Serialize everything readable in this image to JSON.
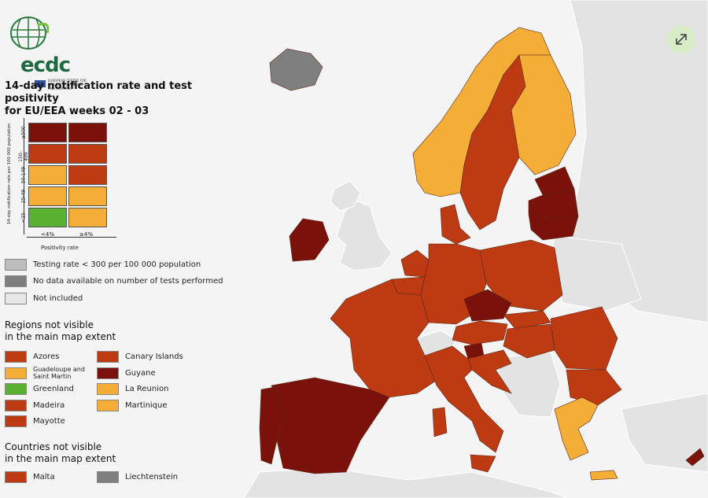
{
  "colors": {
    "sea": "#f4f4f4",
    "non_eu": "#e3e3e3",
    "dark_red": "#7a120b",
    "red": "#bd3a12",
    "orange": "#f4ad37",
    "green": "#5ab02f",
    "grey_testing": "#bdbdbd",
    "grey_nodata": "#7f7f7f",
    "grey_not_included": "#e6e6e6"
  },
  "header": {
    "logo_text": "ecdc",
    "logo_sub": "EUROPEAN CENTRE FOR DISEASE PREVENTION AND CONTROL",
    "title_line1": "14-day notification rate and test positivity",
    "title_line2": "for EU/EEA weeks 02 - 03"
  },
  "matrix": {
    "y_axis_label": "14-day notification rate per 100 000 population",
    "y_ticks": [
      "≥500",
      "150-499",
      "50-149",
      "25-49",
      "<25"
    ],
    "x_ticks": [
      "<4%",
      "≥4%"
    ],
    "x_axis_label": "Positivity rate",
    "cells": [
      [
        "dark_red",
        "dark_red"
      ],
      [
        "red",
        "red"
      ],
      [
        "orange",
        "red"
      ],
      [
        "orange",
        "orange"
      ],
      [
        "green",
        "orange"
      ]
    ]
  },
  "legend": {
    "testing": "Testing rate < 300 per 100 000 population",
    "no_data": "No data available on number of tests performed",
    "not_included": "Not included"
  },
  "regions": {
    "heading_line1": "Regions not visible",
    "heading_line2": "in the main map extent",
    "left": [
      {
        "label": "Azores",
        "color": "red"
      },
      {
        "label": "Guadeloupe and Saint Martin",
        "color": "orange"
      },
      {
        "label": "Greenland",
        "color": "green"
      },
      {
        "label": "Madeira",
        "color": "red"
      },
      {
        "label": "Mayotte",
        "color": "red"
      }
    ],
    "right": [
      {
        "label": "Canary Islands",
        "color": "red"
      },
      {
        "label": "Guyane",
        "color": "dark_red"
      },
      {
        "label": "La Reunion",
        "color": "orange"
      },
      {
        "label": "Martinique",
        "color": "orange"
      }
    ]
  },
  "countries": {
    "heading_line1": "Countries not visible",
    "heading_line2": "in the main map extent",
    "items": [
      {
        "label": "Malta",
        "color": "red"
      },
      {
        "label": "Liechtenstein",
        "color": "grey_nodata"
      }
    ]
  },
  "map_regions": [
    {
      "name": "Iceland",
      "status": "grey_nodata"
    },
    {
      "name": "Norway",
      "status": "orange"
    },
    {
      "name": "Sweden",
      "status": "red"
    },
    {
      "name": "Finland",
      "status": "orange"
    },
    {
      "name": "Estonia",
      "status": "dark_red"
    },
    {
      "name": "Latvia",
      "status": "dark_red"
    },
    {
      "name": "Lithuania",
      "status": "dark_red"
    },
    {
      "name": "Ireland",
      "status": "dark_red"
    },
    {
      "name": "Denmark",
      "status": "red"
    },
    {
      "name": "Netherlands",
      "status": "red"
    },
    {
      "name": "Belgium",
      "status": "red"
    },
    {
      "name": "Germany",
      "status": "red"
    },
    {
      "name": "Poland",
      "status": "red"
    },
    {
      "name": "Czechia",
      "status": "dark_red"
    },
    {
      "name": "Slovakia",
      "status": "red"
    },
    {
      "name": "France",
      "status": "red"
    },
    {
      "name": "Austria",
      "status": "red"
    },
    {
      "name": "Hungary",
      "status": "red"
    },
    {
      "name": "Romania",
      "status": "red"
    },
    {
      "name": "Bulgaria",
      "status": "red"
    },
    {
      "name": "Slovenia",
      "status": "dark_red"
    },
    {
      "name": "Croatia",
      "status": "red"
    },
    {
      "name": "Italy",
      "status": "red"
    },
    {
      "name": "Spain",
      "status": "dark_red"
    },
    {
      "name": "Portugal",
      "status": "dark_red"
    },
    {
      "name": "Greece",
      "status": "orange"
    },
    {
      "name": "Cyprus",
      "status": "dark_red"
    }
  ],
  "controls": {
    "expand_icon": "expand-icon"
  }
}
